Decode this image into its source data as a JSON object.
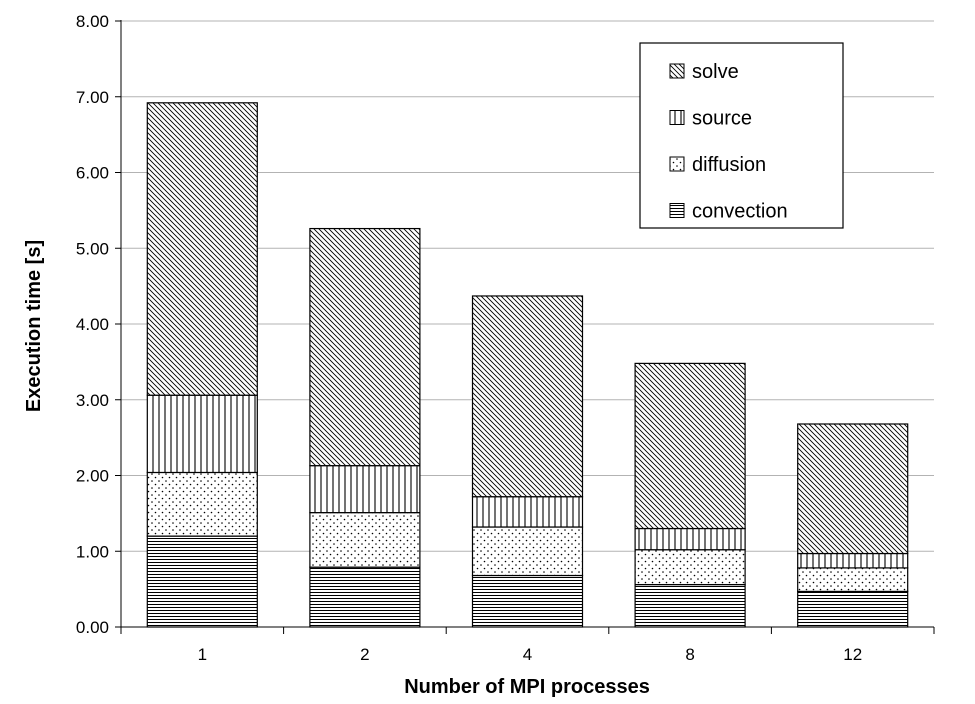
{
  "chart_data": {
    "type": "bar",
    "stacked": true,
    "categories": [
      "1",
      "2",
      "4",
      "8",
      "12"
    ],
    "series": [
      {
        "name": "convection",
        "pattern": "horizontal-lines",
        "values": [
          1.2,
          0.79,
          0.68,
          0.56,
          0.47
        ]
      },
      {
        "name": "diffusion",
        "pattern": "dots",
        "values": [
          0.84,
          0.72,
          0.64,
          0.46,
          0.31
        ]
      },
      {
        "name": "source",
        "pattern": "vertical-lines",
        "values": [
          1.02,
          0.62,
          0.4,
          0.28,
          0.19
        ]
      },
      {
        "name": "solve",
        "pattern": "diagonal-lines",
        "values": [
          3.86,
          3.13,
          2.65,
          2.18,
          1.71
        ]
      }
    ],
    "legend_order": [
      "solve",
      "source",
      "diffusion",
      "convection"
    ],
    "title": "",
    "xlabel": "Number of MPI processes",
    "ylabel": "Execution time [s]",
    "ylim": [
      0,
      8
    ],
    "yticks": [
      "0.00",
      "1.00",
      "2.00",
      "3.00",
      "4.00",
      "5.00",
      "6.00",
      "7.00",
      "8.00"
    ],
    "grid": true,
    "legend_position": "top-right",
    "colors": {
      "bar_fill": "#ffffff",
      "bar_stroke": "#000000",
      "grid": "#b3b3b3"
    }
  }
}
